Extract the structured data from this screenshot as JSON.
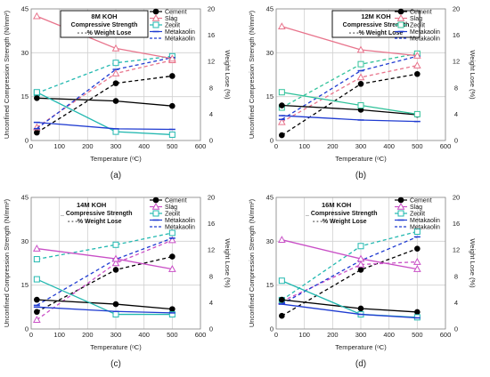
{
  "figure": {
    "panel_labels": [
      "(a)",
      "(b)",
      "(c)",
      "(d)"
    ]
  },
  "legend_labels": {
    "series": [
      "Cement",
      "Slag",
      "Zeolit",
      "Metakaolin"
    ],
    "compressive": "Compressive Strength",
    "weight": "- - -% Weight Lose"
  },
  "colors": {
    "Cement": "#000000",
    "Slag": "#e8748c",
    "Zeolit": "#22b8b0",
    "Metakaolin": "#1f3bd1",
    "Slag_c": "#c94fc6",
    "Zeolit_b": "#30c29a",
    "grid": "#d0d0d0"
  },
  "chart_data": [
    {
      "type": "line",
      "panel": "(a)",
      "box_title": "8M KOH",
      "xlabel": "Temperature (ᵒC)",
      "ylabel_left": "Unconfined Compression Strength (N/mm²)",
      "ylabel_right": "Weight Lose (%)",
      "x_ticks": [
        0,
        100,
        200,
        300,
        400,
        500,
        600
      ],
      "y_left_ticks": [
        0,
        15,
        30,
        45
      ],
      "y_right_ticks": [
        0,
        4,
        8,
        12,
        16,
        20
      ],
      "xlim": [
        0,
        600
      ],
      "ylim_left": [
        0,
        45
      ],
      "ylim_right": [
        0,
        20
      ],
      "x": [
        20,
        300,
        500
      ],
      "strength": [
        {
          "name": "Cement",
          "values": [
            14.5,
            13.5,
            11.8
          ]
        },
        {
          "name": "Slag",
          "values": [
            42.5,
            31.5,
            28.0
          ]
        },
        {
          "name": "Zeolit",
          "values": [
            16.5,
            3.0,
            2.0
          ]
        },
        {
          "name": "Metakaolin",
          "values": [
            6.2,
            4.0,
            3.8
          ]
        }
      ],
      "weight_loss": [
        {
          "name": "Cement",
          "values": [
            1.2,
            8.7,
            9.8
          ]
        },
        {
          "name": "Slag",
          "values": [
            2.0,
            10.2,
            12.2
          ]
        },
        {
          "name": "Zeolit",
          "values": [
            7.2,
            11.8,
            12.8
          ]
        },
        {
          "name": "Metakaolin",
          "values": [
            1.8,
            10.8,
            12.6
          ]
        }
      ]
    },
    {
      "type": "line",
      "panel": "(b)",
      "box_title": "12M KOH",
      "xlabel": "Temperature (ᵒC)",
      "ylabel_left": "Unconfined Compression Strength (N/mm²)",
      "ylabel_right": "Weight Lose (%)",
      "x_ticks": [
        0,
        100,
        200,
        300,
        400,
        500,
        600
      ],
      "y_left_ticks": [
        0,
        15,
        30,
        45
      ],
      "y_right_ticks": [
        0,
        4,
        8,
        12,
        16,
        20
      ],
      "xlim": [
        0,
        600
      ],
      "ylim_left": [
        0,
        45
      ],
      "ylim_right": [
        0,
        20
      ],
      "x": [
        20,
        300,
        500
      ],
      "strength": [
        {
          "name": "Cement",
          "values": [
            12.0,
            10.5,
            8.8
          ]
        },
        {
          "name": "Slag",
          "values": [
            39.0,
            31.0,
            29.0
          ]
        },
        {
          "name": "Zeolit",
          "values": [
            16.5,
            12.0,
            9.0
          ]
        },
        {
          "name": "Metakaolin",
          "values": [
            8.5,
            7.0,
            6.5
          ]
        }
      ],
      "weight_loss": [
        {
          "name": "Cement",
          "values": [
            0.8,
            8.6,
            10.1
          ]
        },
        {
          "name": "Slag",
          "values": [
            2.8,
            9.6,
            11.4
          ]
        },
        {
          "name": "Zeolit",
          "values": [
            5.0,
            11.6,
            13.2
          ]
        },
        {
          "name": "Metakaolin",
          "values": [
            3.2,
            10.6,
            12.8
          ]
        }
      ]
    },
    {
      "type": "line",
      "panel": "(c)",
      "box_title": "14M KOH",
      "xlabel": "Temperature (ᵒC)",
      "ylabel_left": "Unconfined Compression Strength (N/mm²)",
      "ylabel_right": "Weight Lose (%)",
      "x_ticks": [
        0,
        100,
        200,
        300,
        400,
        500,
        600
      ],
      "y_left_ticks": [
        0,
        15,
        30,
        45
      ],
      "y_right_ticks": [
        0,
        4,
        8,
        12,
        16,
        20
      ],
      "xlim": [
        0,
        600
      ],
      "ylim_left": [
        0,
        45
      ],
      "ylim_right": [
        0,
        20
      ],
      "x": [
        20,
        300,
        500
      ],
      "strength": [
        {
          "name": "Cement",
          "values": [
            10.0,
            8.5,
            6.8
          ]
        },
        {
          "name": "Slag",
          "values": [
            27.5,
            24.0,
            20.5
          ]
        },
        {
          "name": "Zeolit",
          "values": [
            17.0,
            5.0,
            5.0
          ]
        },
        {
          "name": "Metakaolin",
          "values": [
            7.5,
            6.0,
            5.5
          ]
        }
      ],
      "weight_loss": [
        {
          "name": "Cement",
          "values": [
            2.6,
            9.0,
            11.0
          ]
        },
        {
          "name": "Slag",
          "values": [
            1.4,
            10.0,
            13.5
          ]
        },
        {
          "name": "Zeolit",
          "values": [
            10.6,
            12.8,
            14.6
          ]
        },
        {
          "name": "Metakaolin",
          "values": [
            3.6,
            10.6,
            13.8
          ]
        }
      ]
    },
    {
      "type": "line",
      "panel": "(d)",
      "box_title": "16M KOH",
      "xlabel": "Temperature (ᵒC)",
      "ylabel_left": "Unconfined Compression Strength (N/mm²)",
      "ylabel_right": "Weight Lose (%)",
      "x_ticks": [
        0,
        100,
        200,
        300,
        400,
        500,
        600
      ],
      "y_left_ticks": [
        0,
        15,
        30,
        45
      ],
      "y_right_ticks": [
        0,
        4,
        8,
        12,
        16,
        20
      ],
      "xlim": [
        0,
        600
      ],
      "ylim_left": [
        0,
        45
      ],
      "ylim_right": [
        0,
        20
      ],
      "x": [
        20,
        300,
        500
      ],
      "strength": [
        {
          "name": "Cement",
          "values": [
            10.0,
            7.0,
            5.8
          ]
        },
        {
          "name": "Slag",
          "values": [
            30.5,
            24.0,
            20.5
          ]
        },
        {
          "name": "Zeolit",
          "values": [
            16.5,
            5.0,
            4.0
          ]
        },
        {
          "name": "Metakaolin",
          "values": [
            8.5,
            5.0,
            3.8
          ]
        }
      ],
      "weight_loss": [
        {
          "name": "Cement",
          "values": [
            2.0,
            9.0,
            12.2
          ]
        },
        {
          "name": "Slag",
          "values": [
            4.2,
            9.8,
            10.2
          ]
        },
        {
          "name": "Zeolit",
          "values": [
            4.4,
            12.6,
            14.8
          ]
        },
        {
          "name": "Metakaolin",
          "values": [
            3.8,
            10.4,
            14.0
          ]
        }
      ]
    }
  ]
}
